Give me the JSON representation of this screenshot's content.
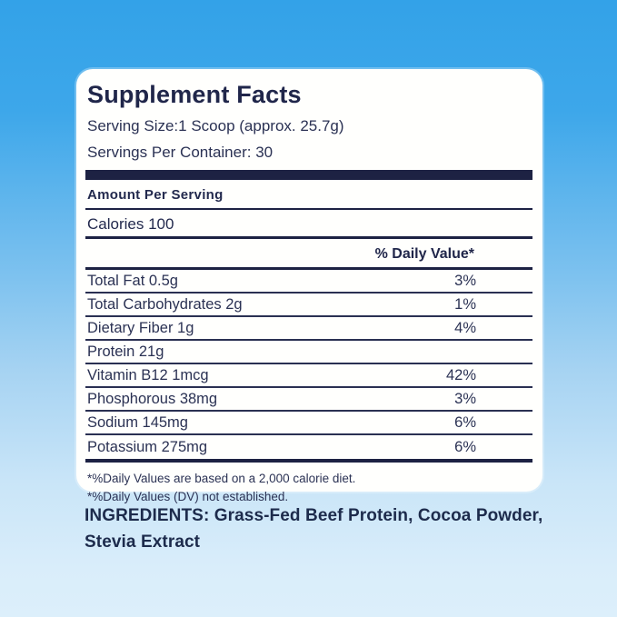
{
  "background": {
    "gradient_top": "#33a2e8",
    "gradient_bottom": "#dceffb"
  },
  "colors": {
    "card_background": "#ffffff",
    "text_navy": "#232a4e",
    "rule_navy": "#1d2243"
  },
  "label": {
    "title": "Supplement Facts",
    "serving_size": "Serving Size:1 Scoop (approx. 25.7g)",
    "servings_per_container": "Servings Per Container: 30",
    "amount_per_serving": "Amount Per Serving",
    "calories": "Calories 100",
    "daily_value_header": "% Daily Value*",
    "rows": [
      {
        "name": "Total Fat 0.5g",
        "dv": "3%"
      },
      {
        "name": "Total Carbohydrates 2g",
        "dv": "1%"
      },
      {
        "name": "Dietary Fiber 1g",
        "dv": "4%"
      },
      {
        "name": "Protein 21g",
        "dv": ""
      },
      {
        "name": "Vitamin B12  1mcg",
        "dv": "42%"
      },
      {
        "name": "Phosphorous 38mg",
        "dv": "3%"
      },
      {
        "name": "Sodium 145mg",
        "dv": "6%"
      },
      {
        "name": "Potassium 275mg",
        "dv": "6%"
      }
    ],
    "footnotes": [
      "*%Daily Values are based on a 2,000 calorie diet.",
      "*%Daily Values (DV) not established."
    ]
  },
  "ingredients": "INGREDIENTS: Grass-Fed Beef Protein, Cocoa Powder, Stevia Extract"
}
